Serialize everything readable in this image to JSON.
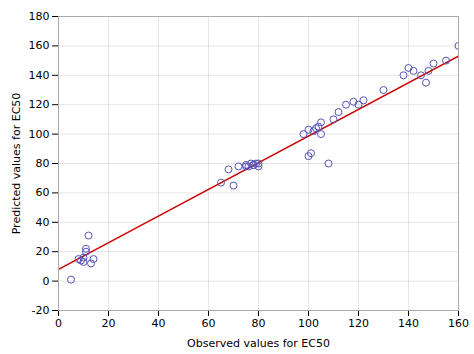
{
  "chart_data": {
    "type": "scatter",
    "xlabel": "Observed values for EC50",
    "ylabel": "Predicted values for EC50",
    "xlim": [
      0,
      160
    ],
    "ylim": [
      -20,
      180
    ],
    "xticks": [
      0,
      20,
      40,
      60,
      80,
      100,
      120,
      140,
      160
    ],
    "yticks": [
      -20,
      0,
      20,
      40,
      60,
      80,
      100,
      120,
      140,
      160,
      180
    ],
    "grid": true,
    "series": [
      {
        "type": "line",
        "color": "#cc0000",
        "x": [
          0,
          160
        ],
        "values": [
          8,
          153
        ]
      },
      {
        "type": "scatter",
        "color": "#5555bb",
        "marker": "circle",
        "x": [
          5,
          8,
          9,
          10,
          10,
          11,
          11,
          12,
          13,
          14,
          65,
          68,
          70,
          72,
          75,
          75,
          76,
          77,
          78,
          78,
          79,
          80,
          80,
          98,
          100,
          100,
          101,
          102,
          103,
          104,
          105,
          105,
          108,
          110,
          112,
          115,
          118,
          120,
          122,
          130,
          138,
          140,
          142,
          145,
          147,
          148,
          150,
          155,
          160
        ],
        "values": [
          1,
          15,
          14,
          16,
          13,
          20,
          22,
          31,
          12,
          15,
          67,
          76,
          65,
          78,
          79,
          78,
          78,
          80,
          79,
          79,
          80,
          78,
          80,
          100,
          103,
          85,
          87,
          102,
          104,
          105,
          100,
          108,
          80,
          110,
          115,
          120,
          122,
          120,
          123,
          130,
          140,
          145,
          143,
          140,
          135,
          143,
          148,
          150,
          160
        ]
      }
    ]
  }
}
